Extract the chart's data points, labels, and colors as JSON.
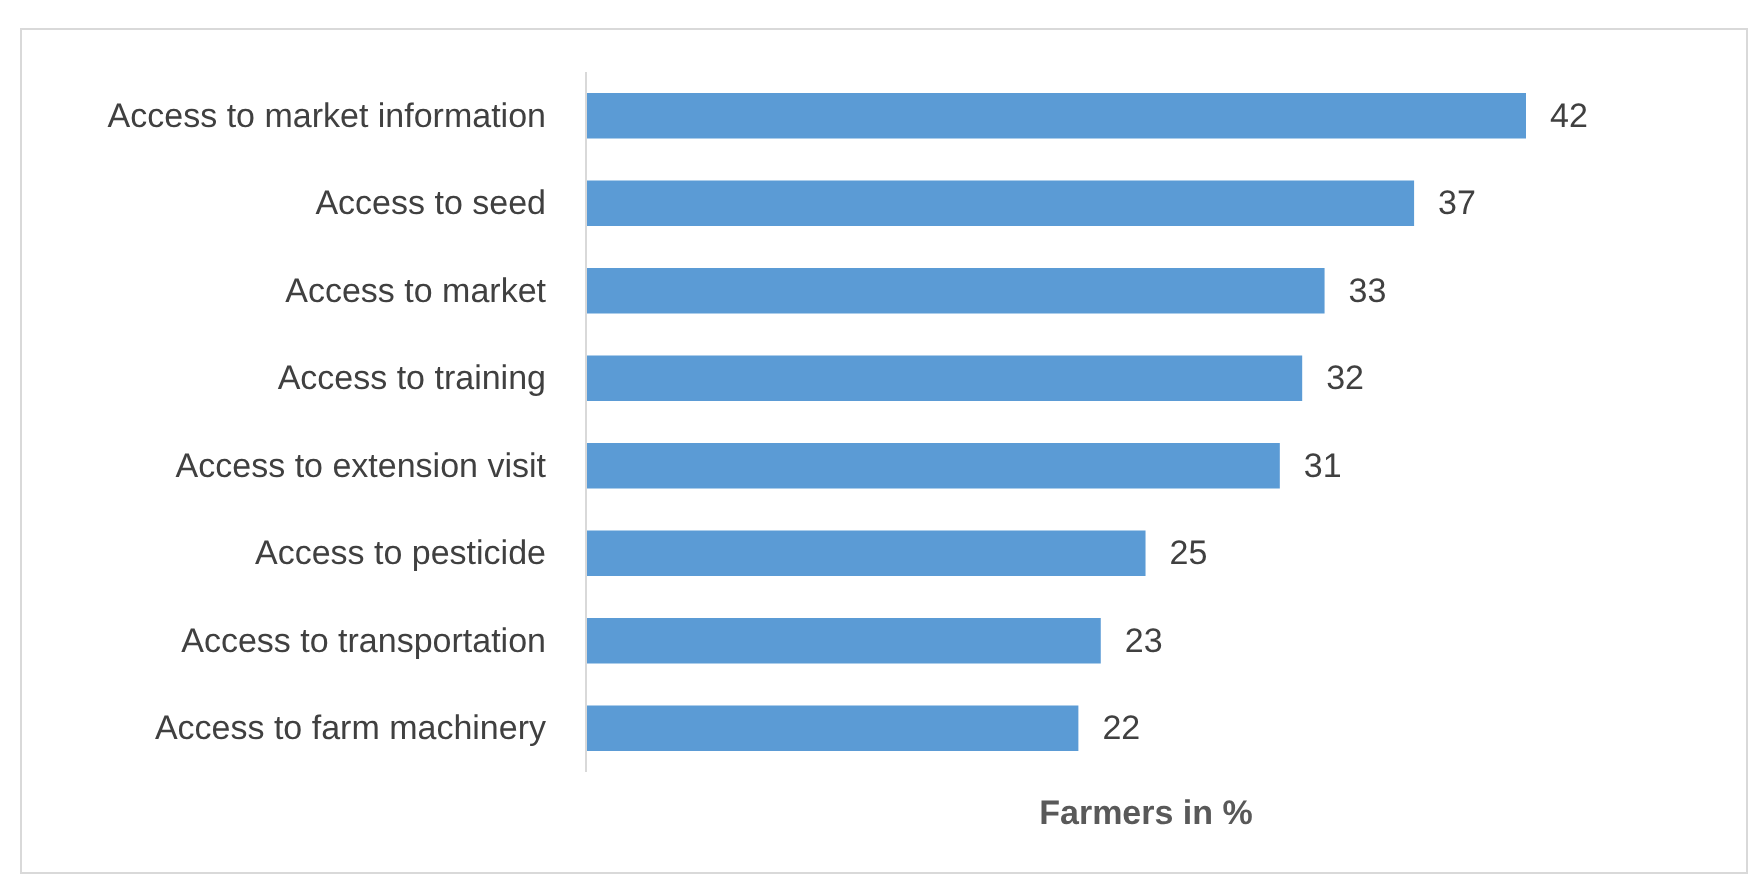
{
  "chart_data": {
    "type": "bar",
    "orientation": "horizontal",
    "xlabel": "Farmers in %",
    "categories": [
      "Access to market information",
      "Access to seed",
      "Access to market",
      "Access to training ",
      "Access to extension visit",
      "Access to pesticide ",
      "Access to transportation",
      "Access to farm machinery"
    ],
    "values": [
      42,
      37,
      33,
      32,
      31,
      25,
      23,
      22
    ],
    "color": "#5b9bd5",
    "data_labels": true
  }
}
